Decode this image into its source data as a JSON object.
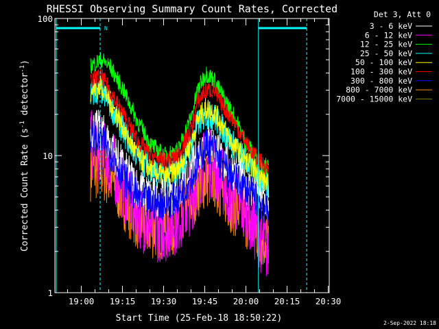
{
  "chart_data": {
    "type": "line",
    "title": "RHESSI Observing Summary Count Rates, Corrected",
    "xlabel": "Start Time (25-Feb-18 18:50:22)",
    "ylabel": "Corrected Count Rate (s",
    "ylabel_sup1": "-1",
    "ylabel_mid": " detector",
    "ylabel_sup2": "-1",
    "ylabel_end": ")",
    "y_scale": "log",
    "ylim": [
      1,
      100
    ],
    "x_unit": "minutes after 18:50:22",
    "xlim": [
      0,
      100
    ],
    "x_ticks": [
      {
        "label": "19:00",
        "t": 9.63
      },
      {
        "label": "19:15",
        "t": 24.63
      },
      {
        "label": "19:30",
        "t": 39.63
      },
      {
        "label": "19:45",
        "t": 54.63
      },
      {
        "label": "20:00",
        "t": 69.63
      },
      {
        "label": "20:15",
        "t": 84.63
      },
      {
        "label": "20:30",
        "t": 99.63
      }
    ],
    "y_ticks": [
      {
        "label": "1",
        "v": 1
      },
      {
        "label": "10",
        "v": 10
      },
      {
        "label": "100",
        "v": 100
      }
    ],
    "legend_header": "Det 3, Att 0",
    "legend_position": "right",
    "series": [
      {
        "name": "3 - 6 keV",
        "color": "#ffffff"
      },
      {
        "name": "6 - 12 keV",
        "color": "#ff00ff"
      },
      {
        "name": "12 - 25 keV",
        "color": "#00ff00"
      },
      {
        "name": "25 - 50 keV",
        "color": "#00ffff"
      },
      {
        "name": "50 - 100 keV",
        "color": "#ffff00"
      },
      {
        "name": "100 - 300 keV",
        "color": "#ff0000"
      },
      {
        "name": "300 - 800 keV",
        "color": "#0000ff"
      },
      {
        "name": "800 - 7000 keV",
        "color": "#ff8c00"
      },
      {
        "name": "7000 - 15000 keV",
        "color": "#808000"
      }
    ],
    "series_data": {
      "x": [
        13,
        17,
        20,
        25,
        30,
        35,
        40,
        45,
        50,
        52,
        55,
        58,
        60,
        65,
        70,
        73,
        75,
        78
      ],
      "12 - 25 keV": [
        45,
        50,
        45,
        30,
        18,
        12,
        10,
        11,
        20,
        30,
        40,
        36,
        30,
        20,
        12,
        10,
        9,
        8
      ],
      "100 - 300 keV": [
        35,
        38,
        30,
        20,
        13,
        10,
        9,
        10,
        16,
        25,
        30,
        30,
        25,
        18,
        12,
        10,
        9,
        8
      ],
      "50 - 100 keV": [
        30,
        32,
        25,
        16,
        10,
        8,
        7,
        8,
        13,
        18,
        22,
        21,
        18,
        12,
        9,
        8,
        7,
        6
      ],
      "25 - 50 keV": [
        28,
        30,
        24,
        15,
        10,
        8,
        7,
        8,
        12,
        17,
        20,
        19,
        17,
        12,
        9,
        8,
        7,
        6
      ],
      "3 - 6 keV": [
        16,
        15,
        12,
        8,
        6,
        5,
        5,
        5.5,
        8,
        10,
        13,
        12,
        10,
        8,
        6,
        5.5,
        5,
        4.5
      ],
      "300 - 800 keV": [
        14,
        13,
        11,
        7,
        5,
        4.5,
        4.5,
        5,
        7,
        9,
        12,
        11,
        9,
        7,
        5.5,
        5,
        4.5,
        4
      ],
      "6 - 12 keV": [
        12,
        11,
        9,
        6,
        4,
        3,
        3,
        3.5,
        5,
        7,
        9,
        8.5,
        7,
        5,
        4,
        3,
        2.5,
        2
      ],
      "800 - 7000 keV": [
        8,
        8,
        7,
        5,
        3.5,
        3,
        3,
        3.5,
        5,
        6,
        7,
        7,
        6,
        4.5,
        3.5,
        3,
        2.5,
        2.5
      ]
    },
    "annotations": {
      "marker_text": "N",
      "attenuator_bars": [
        {
          "t_start": 0.5,
          "t_end": 16.5
        },
        {
          "t_start": 74.2,
          "t_end": 91.8
        }
      ],
      "vertical_lines": [
        {
          "t": 0.5,
          "style": "solid"
        },
        {
          "t": 16.5,
          "style": "dashed"
        },
        {
          "t": 74.2,
          "style": "solid"
        },
        {
          "t": 91.8,
          "style": "dashed"
        }
      ]
    },
    "date_stamp": "2-Sep-2022 18:18"
  }
}
